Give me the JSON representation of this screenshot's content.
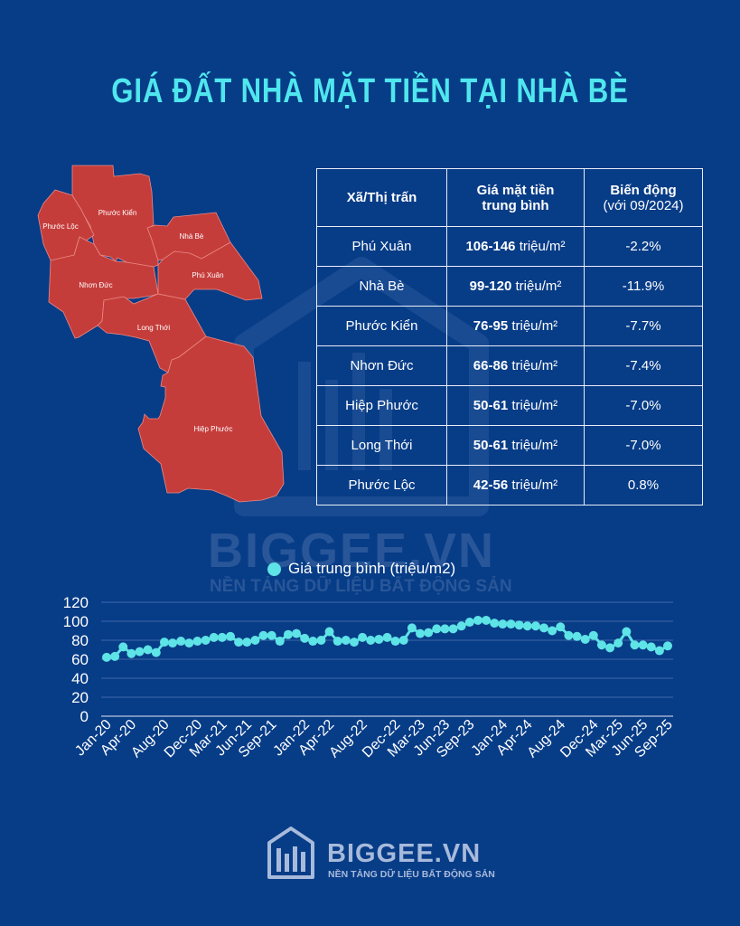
{
  "title": "GIÁ ĐẤT NHÀ MẶT TIỀN TẠI NHÀ BÈ",
  "colors": {
    "background": "#073c87",
    "accent": "#4fe6ee",
    "map_fill": "#c53d3b",
    "series": "#5ee3e6"
  },
  "map": {
    "labels": [
      "Phước Kiển",
      "Phước Lộc",
      "Nhà Bè",
      "Phú Xuân",
      "Nhơn Đức",
      "Long Thới",
      "Hiệp Phước"
    ]
  },
  "table": {
    "headers": {
      "col1": "Xã/Thị trấn",
      "col2_line1": "Giá mặt tiền",
      "col2_line2": "trung bình",
      "col3_line1": "Biến động",
      "col3_line2": "(với 09/2024)"
    },
    "unit": "triệu/m²",
    "rows": [
      {
        "name": "Phú Xuân",
        "range": "106-146",
        "change": "-2.2%"
      },
      {
        "name": "Nhà Bè",
        "range": "99-120",
        "change": "-11.9%"
      },
      {
        "name": "Phước Kiển",
        "range": "76-95",
        "change": "-7.7%"
      },
      {
        "name": "Nhơn Đức",
        "range": "66-86",
        "change": "-7.4%"
      },
      {
        "name": "Hiệp Phước",
        "range": "50-61",
        "change": "-7.0%"
      },
      {
        "name": "Long Thới",
        "range": "50-61",
        "change": "-7.0%"
      },
      {
        "name": "Phước Lộc",
        "range": "42-56",
        "change": "0.8%"
      }
    ]
  },
  "chart_data": {
    "type": "line",
    "title": "",
    "legend": [
      "Giá trung bình (triệu/m2)"
    ],
    "legend_position": "top-center",
    "ylim": [
      0,
      120
    ],
    "yticks": [
      0,
      20,
      40,
      60,
      80,
      100,
      120
    ],
    "tick_labels": [
      {
        "i": 0,
        "label": "Jan-20"
      },
      {
        "i": 3,
        "label": "Apr-20"
      },
      {
        "i": 7,
        "label": "Aug-20"
      },
      {
        "i": 11,
        "label": "Dec-20"
      },
      {
        "i": 14,
        "label": "Mar-21"
      },
      {
        "i": 17,
        "label": "Jun-21"
      },
      {
        "i": 20,
        "label": "Sep-21"
      },
      {
        "i": 24,
        "label": "Jan-22"
      },
      {
        "i": 27,
        "label": "Apr-22"
      },
      {
        "i": 31,
        "label": "Aug-22"
      },
      {
        "i": 35,
        "label": "Dec-22"
      },
      {
        "i": 38,
        "label": "Mar-23"
      },
      {
        "i": 41,
        "label": "Jun-23"
      },
      {
        "i": 44,
        "label": "Sep-23"
      },
      {
        "i": 48,
        "label": "Jan-24"
      },
      {
        "i": 51,
        "label": "Apr-24"
      },
      {
        "i": 55,
        "label": "Aug-24"
      },
      {
        "i": 59,
        "label": "Dec-24"
      },
      {
        "i": 62,
        "label": "Mar-25"
      },
      {
        "i": 65,
        "label": "Jun-25"
      },
      {
        "i": 68,
        "label": "Sep-25"
      }
    ],
    "series": [
      {
        "name": "Giá trung bình (triệu/m2)",
        "values": [
          62,
          63,
          73,
          66,
          68,
          70,
          67,
          78,
          77,
          79,
          77,
          79,
          80,
          83,
          83,
          84,
          78,
          78,
          80,
          85,
          85,
          79,
          86,
          87,
          82,
          79,
          80,
          89,
          79,
          80,
          78,
          83,
          80,
          81,
          83,
          79,
          80,
          93,
          87,
          88,
          92,
          92,
          92,
          95,
          99,
          101,
          101,
          98,
          97,
          97,
          96,
          95,
          95,
          93,
          90,
          94,
          85,
          84,
          81,
          85,
          75,
          72,
          77,
          89,
          75,
          75,
          73,
          69,
          74
        ]
      }
    ],
    "grid": true
  },
  "watermark": {
    "brand": "BIGGEE.VN",
    "tagline": "NỀN TẢNG DỮ LIỆU BẤT ĐỘNG SẢN"
  },
  "footer": {
    "brand": "BIGGEE.VN",
    "tagline": "NỀN TẢNG DỮ LIỆU BẤT ĐỘNG SẢN"
  }
}
